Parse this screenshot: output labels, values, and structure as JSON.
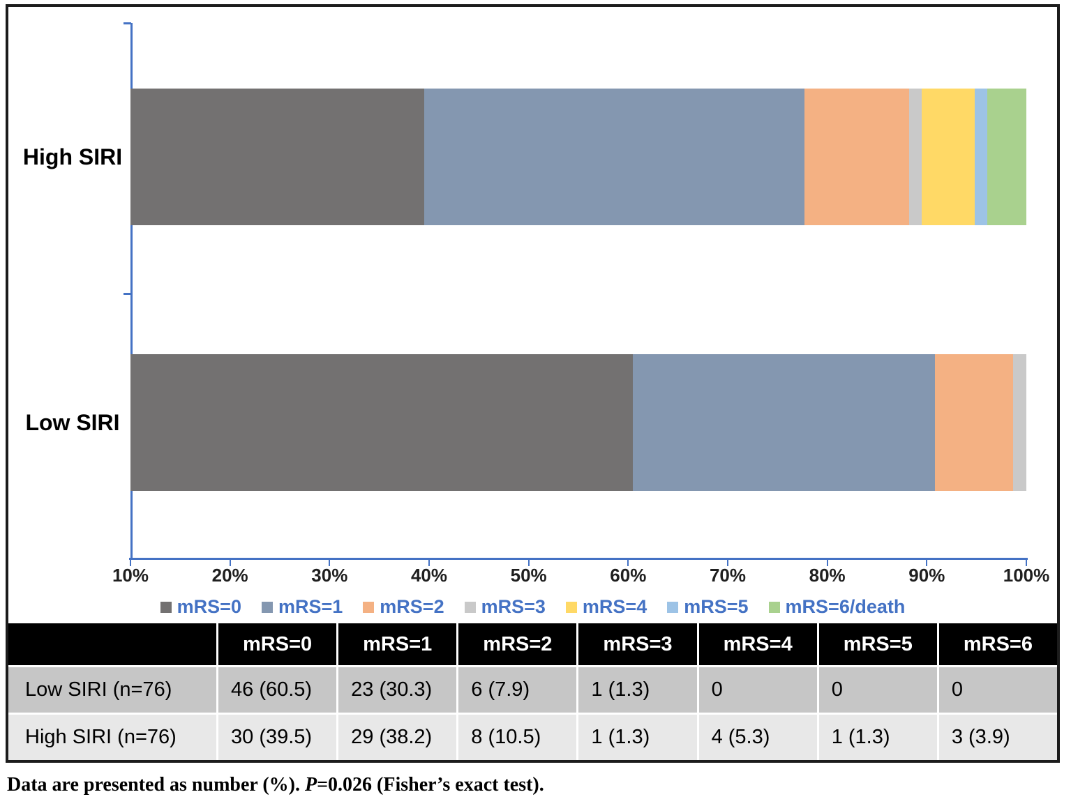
{
  "chart_data": {
    "type": "bar",
    "orientation": "horizontal",
    "stacked": true,
    "title": "",
    "xlabel": "",
    "ylabel": "",
    "axis_range": [
      10,
      100
    ],
    "x_tick_labels": [
      "10%",
      "20%",
      "30%",
      "40%",
      "50%",
      "60%",
      "70%",
      "80%",
      "90%",
      "100%"
    ],
    "grid": "off",
    "legend_position": "bottom",
    "axis_color": "#4472C4",
    "legend_text_color": "#4472C4",
    "tick_label_color": "#1f1f1f",
    "categories": [
      "High SIRI",
      "Low SIRI"
    ],
    "series": [
      {
        "name": "mRS=0",
        "color": "#737171",
        "values": [
          39.5,
          60.5
        ]
      },
      {
        "name": "mRS=1",
        "color": "#8497B0",
        "values": [
          38.2,
          30.3
        ]
      },
      {
        "name": "mRS=2",
        "color": "#F4B183",
        "values": [
          10.5,
          7.9
        ]
      },
      {
        "name": "mRS=3",
        "color": "#C9C9C9",
        "values": [
          1.3,
          1.3
        ]
      },
      {
        "name": "mRS=4",
        "color": "#FFD966",
        "values": [
          5.3,
          0
        ]
      },
      {
        "name": "mRS=5",
        "color": "#9DC3E6",
        "values": [
          1.3,
          0
        ]
      },
      {
        "name": "mRS=6/death",
        "color": "#A9D18E",
        "values": [
          3.9,
          0
        ]
      }
    ]
  },
  "table": {
    "header": [
      "",
      "mRS=0",
      "mRS=1",
      "mRS=2",
      "mRS=3",
      "mRS=4",
      "mRS=5",
      "mRS=6"
    ],
    "header_bg": "#000000",
    "header_text_color": "#ffffff",
    "row_colors": [
      "#C6C6C6",
      "#E8E8E8"
    ],
    "rows": [
      {
        "label": "Low SIRI (n=76)",
        "cells": [
          "46 (60.5)",
          "23 (30.3)",
          "6 (7.9)",
          "1 (1.3)",
          "0",
          "0",
          "0"
        ]
      },
      {
        "label": "High SIRI (n=76)",
        "cells": [
          "30 (39.5)",
          "29 (38.2)",
          "8 (10.5)",
          "1 (1.3)",
          "4 (5.3)",
          "1 (1.3)",
          "3 (3.9)"
        ]
      }
    ]
  },
  "footnote": {
    "prefix": "Data are presented as number (%). ",
    "p_symbol": "P",
    "rest": "=0.026 (Fisher’s exact test)."
  }
}
